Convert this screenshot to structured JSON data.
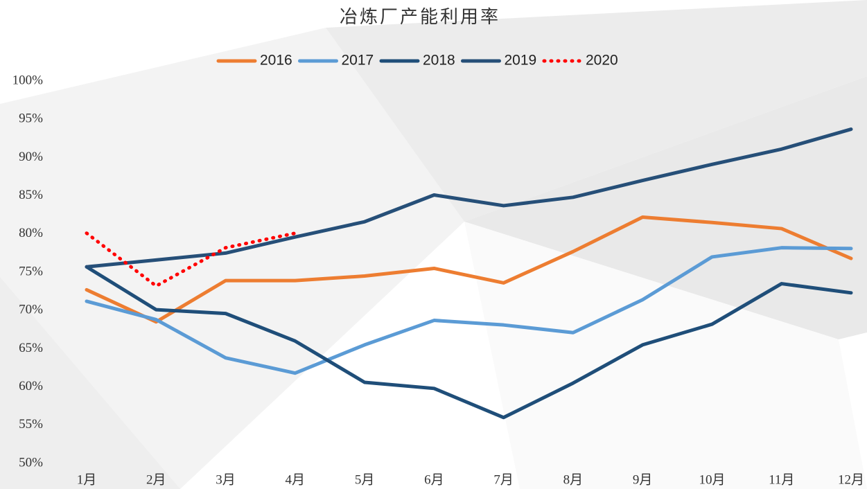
{
  "chart_data": {
    "type": "line",
    "title": "冶炼厂产能利用率",
    "categories": [
      "1月",
      "2月",
      "3月",
      "4月",
      "5月",
      "6月",
      "7月",
      "8月",
      "9月",
      "10月",
      "11月",
      "12月"
    ],
    "series": [
      {
        "name": "2016",
        "color": "#ed7d31",
        "dash": "solid",
        "values": [
          72.7,
          68.5,
          73.9,
          73.9,
          74.5,
          75.5,
          73.6,
          77.7,
          82.2,
          81.5,
          80.7,
          76.8
        ]
      },
      {
        "name": "2017",
        "color": "#5b9bd5",
        "dash": "solid",
        "values": [
          71.2,
          68.8,
          63.8,
          61.8,
          65.5,
          68.7,
          68.1,
          67.1,
          71.4,
          77.0,
          78.2,
          78.1
        ]
      },
      {
        "name": "2018",
        "color": "#1f4e79",
        "dash": "solid",
        "values": [
          75.7,
          70.1,
          69.6,
          66.0,
          60.6,
          59.8,
          56.0,
          60.5,
          65.5,
          68.2,
          73.5,
          72.3
        ]
      },
      {
        "name": "2019",
        "color": "#264f78",
        "dash": "solid",
        "values": [
          75.7,
          76.6,
          77.5,
          79.6,
          81.6,
          85.1,
          83.7,
          84.8,
          87.0,
          89.1,
          91.1,
          93.7
        ]
      },
      {
        "name": "2020",
        "color": "#ff0000",
        "dash": "dotted",
        "values": [
          80.1,
          73.2,
          78.2,
          80.1,
          null,
          null,
          null,
          null,
          null,
          null,
          null,
          null
        ]
      }
    ],
    "ylim": [
      50,
      100
    ],
    "yticks": [
      {
        "value": 50,
        "label": "50%"
      },
      {
        "value": 55,
        "label": "55%"
      },
      {
        "value": 60,
        "label": "60%"
      },
      {
        "value": 65,
        "label": "65%"
      },
      {
        "value": 70,
        "label": "70%"
      },
      {
        "value": 75,
        "label": "75%"
      },
      {
        "value": 80,
        "label": "80%"
      },
      {
        "value": 85,
        "label": "85%"
      },
      {
        "value": 90,
        "label": "90%"
      },
      {
        "value": 95,
        "label": "95%"
      },
      {
        "value": 100,
        "label": "100%"
      }
    ],
    "legend": "top"
  }
}
